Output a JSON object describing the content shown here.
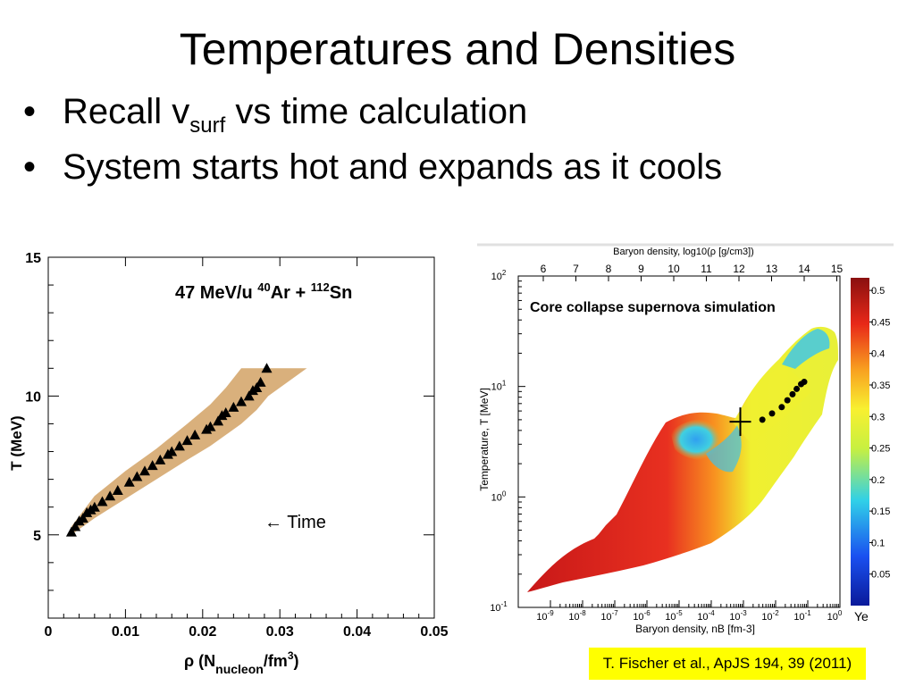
{
  "slide": {
    "title": "Temperatures and Densities",
    "bullets": [
      {
        "pre": "Recall v",
        "sub": "surf",
        "post": " vs time calculation"
      },
      {
        "pre": "System starts hot and expands as it cools",
        "sub": "",
        "post": ""
      }
    ],
    "citation": "T. Fischer et al., ApJS 194, 39 (2011)"
  },
  "chart_data": [
    {
      "type": "scatter",
      "title": "47 MeV/u 40Ar + 112Sn",
      "title_parts": [
        "47 MeV/u ",
        "40",
        "Ar + ",
        "112",
        "Sn"
      ],
      "xlabel_parts": [
        "ρ (N",
        "nucleon",
        "/fm",
        "3",
        ")"
      ],
      "ylabel": "T (MeV)",
      "xlim": [
        0,
        0.05
      ],
      "ylim": [
        2,
        15
      ],
      "xticks": [
        "0",
        "0.01",
        "0.02",
        "0.03",
        "0.04",
        "0.05"
      ],
      "yticks": [
        "5",
        "10",
        "15"
      ],
      "annotation": "←  Time",
      "band_color": "#d9b07c",
      "series": [
        {
          "name": "data",
          "marker": "triangle",
          "x": [
            0.003,
            0.0035,
            0.004,
            0.0045,
            0.005,
            0.0055,
            0.006,
            0.007,
            0.008,
            0.009,
            0.0105,
            0.0115,
            0.0125,
            0.0135,
            0.0145,
            0.0155,
            0.016,
            0.017,
            0.018,
            0.019,
            0.0205,
            0.021,
            0.022,
            0.0225,
            0.023,
            0.024,
            0.025,
            0.026,
            0.0265,
            0.027,
            0.0275,
            0.0283
          ],
          "y": [
            5.1,
            5.3,
            5.5,
            5.6,
            5.8,
            5.9,
            6.0,
            6.2,
            6.4,
            6.6,
            6.9,
            7.1,
            7.3,
            7.5,
            7.7,
            7.9,
            8.0,
            8.2,
            8.4,
            8.6,
            8.8,
            8.9,
            9.1,
            9.3,
            9.4,
            9.6,
            9.8,
            10.0,
            10.2,
            10.3,
            10.5,
            11.0
          ]
        },
        {
          "name": "band",
          "type": "area",
          "x": [
            0.003,
            0.006,
            0.01,
            0.014,
            0.018,
            0.021,
            0.023,
            0.025,
            0.027,
            0.0285,
            0.0335
          ],
          "upper": [
            5.3,
            6.4,
            7.3,
            8.1,
            9.0,
            9.7,
            10.3,
            11.0,
            11.0,
            11.0,
            11.0
          ],
          "lower": [
            5.0,
            5.6,
            6.3,
            7.0,
            7.7,
            8.2,
            8.6,
            9.0,
            9.5,
            10.0,
            11.0
          ]
        }
      ]
    },
    {
      "type": "heatmap",
      "title": "Core collapse supernova simulation",
      "top_axis_label": "Baryon density, log10(ρ [g/cm3])",
      "top_ticks": [
        "6",
        "7",
        "8",
        "9",
        "10",
        "11",
        "12",
        "13",
        "14",
        "15"
      ],
      "xlabel": "Baryon density, nB [fm-3]",
      "ylabel": "Temperature, T [MeV]",
      "xscale": "log",
      "yscale": "log",
      "xlim": [
        1e-10,
        1
      ],
      "ylim": [
        0.1,
        100
      ],
      "xtick_bases": [
        "10",
        "10",
        "10",
        "10",
        "10",
        "10",
        "10",
        "10",
        "10",
        "10"
      ],
      "xtick_exps": [
        "-9",
        "-8",
        "-7",
        "-6",
        "-5",
        "-4",
        "-3",
        "-2",
        "-1",
        "0"
      ],
      "ytick_bases": [
        "10",
        "10",
        "10",
        "10"
      ],
      "ytick_exps": [
        "-1",
        "0",
        "1",
        "2"
      ],
      "colorbar_label": "Ye",
      "colorbar_ticks": [
        "0.5",
        "0.45",
        "0.4",
        "0.35",
        "0.3",
        "0.25",
        "0.2",
        "0.15",
        "0.1",
        "0.05"
      ],
      "colorbar_range": [
        0,
        0.52
      ],
      "points": {
        "nB": [
          0.003,
          0.006,
          0.012,
          0.018,
          0.026,
          0.035,
          0.048,
          0.06
        ],
        "T": [
          5,
          5.7,
          6.5,
          7.5,
          8.5,
          9.5,
          10.5,
          11
        ]
      },
      "cross": {
        "nB": 0.0008,
        "T": 4.8
      }
    }
  ]
}
